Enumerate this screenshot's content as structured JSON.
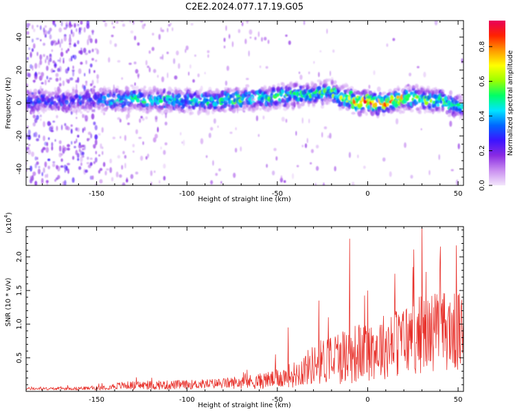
{
  "title": "C2E2.2024.077.17.19.G05",
  "chart_data": [
    {
      "type": "heatmap",
      "xlabel": "Height of straight line (km)",
      "ylabel": "Frequency (Hz)",
      "xlim": [
        -189,
        53
      ],
      "ylim": [
        -50,
        50
      ],
      "x_ticks": [
        -150,
        -100,
        -50,
        0,
        50
      ],
      "y_ticks": [
        -40,
        -20,
        0,
        20,
        40
      ],
      "grid": false,
      "colorbar": {
        "label": "Normalized spectral amplitude",
        "range": [
          0.0,
          0.95
        ],
        "ticks": [
          0.0,
          0.2,
          0.4,
          0.6,
          0.8
        ],
        "tick_labels": [
          "0.0",
          "0.2",
          "0.4",
          "0.6",
          "0.8"
        ],
        "colors": [
          "#f3e6fb",
          "#c98ef0",
          "#8a2be2",
          "#3c14ff",
          "#0066ff",
          "#00e5ff",
          "#00ff66",
          "#9cff00",
          "#ffff00",
          "#ff9900",
          "#ff2200",
          "#e8005a"
        ]
      },
      "band_center": {
        "x": [
          -189,
          -150,
          -125,
          -100,
          -75,
          -50,
          -35,
          -20,
          -10,
          0,
          10,
          20,
          30,
          40,
          53
        ],
        "y": [
          1,
          2,
          2,
          1,
          2,
          4,
          5,
          6,
          2,
          0,
          0,
          3,
          2,
          1,
          -3
        ]
      },
      "peak_amplitude": {
        "x": [
          -189,
          -150,
          -140,
          -100,
          -75,
          -50,
          -25,
          -15,
          -5,
          0,
          5,
          20,
          40,
          53
        ],
        "y": [
          0.35,
          0.35,
          0.5,
          0.5,
          0.55,
          0.55,
          0.55,
          0.6,
          0.85,
          0.92,
          0.85,
          0.7,
          0.6,
          0.5
        ]
      }
    },
    {
      "type": "line",
      "xlabel": "Height of straight line (km)",
      "ylabel": "SNR (10 * v/v)",
      "y_multiplier": "(x10",
      "y_multiplier_exp": "4",
      "y_multiplier_close": ")",
      "xlim": [
        -189,
        53
      ],
      "ylim": [
        0,
        2.45
      ],
      "x_ticks": [
        -150,
        -100,
        -50,
        0,
        50
      ],
      "y_ticks": [
        0.5,
        1.0,
        1.5,
        2.0
      ],
      "y_tick_labels": [
        "0.5",
        "1.0",
        "1.5",
        "2.0"
      ],
      "line_color": "#e8322c",
      "series": [
        {
          "x": [
            -189,
            -170,
            -150,
            -135,
            -120,
            -100,
            -80,
            -60,
            -50,
            -40,
            -30,
            -20,
            -10,
            0,
            10,
            20,
            30,
            40,
            53
          ],
          "mean": [
            0.04,
            0.04,
            0.05,
            0.09,
            0.09,
            0.1,
            0.12,
            0.15,
            0.19,
            0.26,
            0.4,
            0.5,
            0.55,
            0.6,
            0.68,
            0.76,
            0.86,
            0.92,
            0.85
          ],
          "spread": [
            0.02,
            0.02,
            0.03,
            0.06,
            0.07,
            0.07,
            0.08,
            0.12,
            0.14,
            0.2,
            0.3,
            0.4,
            0.45,
            0.45,
            0.5,
            0.55,
            0.6,
            0.6,
            0.6
          ]
        }
      ],
      "spikes": [
        {
          "x": -10,
          "y": 2.27
        },
        {
          "x": -27,
          "y": 1.35
        },
        {
          "x": -44,
          "y": 0.95
        },
        {
          "x": -51,
          "y": 0.55
        },
        {
          "x": 30,
          "y": 2.45
        },
        {
          "x": 49,
          "y": 2.17
        },
        {
          "x": 40,
          "y": 1.95
        },
        {
          "x": 25,
          "y": 1.85
        },
        {
          "x": 15,
          "y": 1.75
        },
        {
          "x": 0,
          "y": 1.5
        }
      ]
    }
  ]
}
